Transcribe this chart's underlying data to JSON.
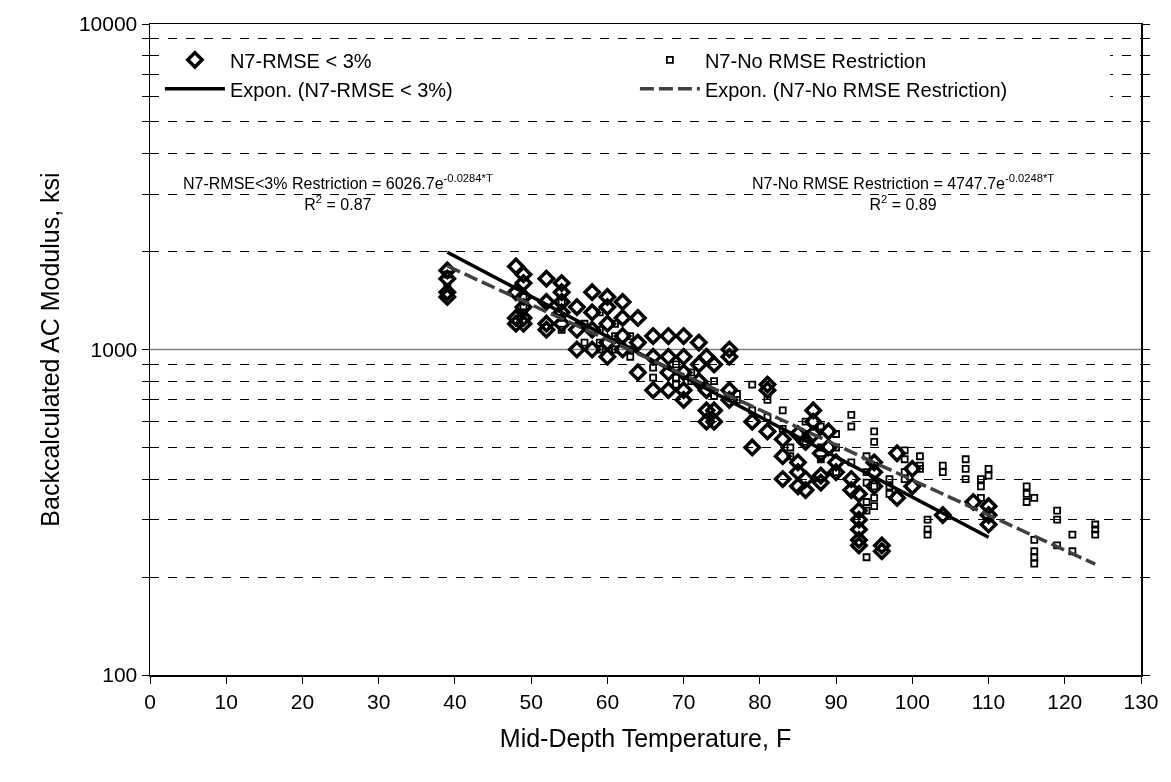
{
  "chart_data": {
    "type": "scatter",
    "xlabel": "Mid-Depth Temperature, F",
    "ylabel": "Backcalculated AC Modulus, ksi",
    "log": "y",
    "grid": "y",
    "legend": "top",
    "xlim": [
      0,
      130
    ],
    "xticks": [
      0,
      10,
      20,
      30,
      40,
      50,
      60,
      70,
      80,
      90,
      100,
      110,
      120,
      130
    ],
    "ylim": [
      100,
      10000
    ],
    "yticks": [
      100,
      {
        "value": 200,
        "label": null
      },
      {
        "value": 300,
        "label": null
      },
      {
        "value": 400,
        "label": null
      },
      {
        "value": 500,
        "label": null
      },
      {
        "value": 600,
        "label": null
      },
      {
        "value": 700,
        "label": null
      },
      {
        "value": 800,
        "label": null
      },
      {
        "value": 900,
        "label": null
      },
      1000,
      {
        "value": 2000,
        "label": null
      },
      {
        "value": 3000,
        "label": null
      },
      {
        "value": 4000,
        "label": null
      },
      {
        "value": 5000,
        "label": null
      },
      {
        "value": 6000,
        "label": null
      },
      {
        "value": 7000,
        "label": null
      },
      {
        "value": 8000,
        "label": null
      },
      {
        "value": 9000,
        "label": null
      },
      10000
    ],
    "ref_lines": [
      {
        "axis": "y",
        "value": 1000,
        "color": "#808080"
      }
    ],
    "annotations": [
      "N7-RMSE<3% Restriction = 6026.7e$^{-0.0284*T}$\nR$^{2}$ = 0.87",
      "N7-No RMSE Restriction = 4747.7e$^{-0.0248*T}$\nR$^{2}$ = 0.89"
    ],
    "series": [
      {
        "name": "N7-RMSE < 3%",
        "marker": "diamond",
        "color": "#000000",
        "x": [
          39,
          39,
          39,
          39,
          48,
          48,
          48,
          48,
          49,
          49,
          49,
          49,
          49,
          49,
          52,
          52,
          52,
          52,
          54,
          54,
          54,
          54,
          54,
          56,
          56,
          56,
          58,
          58,
          58,
          58,
          60,
          60,
          60,
          60,
          60,
          62,
          62,
          62,
          62,
          64,
          64,
          64,
          66,
          66,
          66,
          68,
          68,
          68,
          68,
          70,
          70,
          70,
          70,
          70,
          72,
          72,
          72,
          73,
          73,
          73,
          73,
          74,
          74,
          74,
          76,
          76,
          76,
          76,
          79,
          79,
          81,
          81,
          81,
          83,
          83,
          83,
          85,
          85,
          85,
          85,
          86,
          86,
          86,
          87,
          87,
          87,
          88,
          88,
          88,
          89,
          89,
          90,
          90,
          92,
          92,
          93,
          93,
          93,
          93,
          93,
          93,
          95,
          95,
          95,
          96,
          96,
          98,
          98,
          100,
          100,
          104,
          108,
          110,
          110,
          110
        ],
        "values": [
          1750,
          1650,
          1500,
          1450,
          1800,
          1500,
          1250,
          1200,
          1700,
          1600,
          1450,
          1350,
          1250,
          1200,
          1650,
          1400,
          1200,
          1150,
          1600,
          1500,
          1400,
          1300,
          1200,
          1350,
          1150,
          1000,
          1500,
          1300,
          1150,
          1000,
          1450,
          1350,
          1200,
          1050,
          950,
          1400,
          1250,
          1100,
          1000,
          1250,
          1050,
          850,
          1100,
          950,
          750,
          1100,
          950,
          850,
          750,
          1100,
          950,
          850,
          750,
          700,
          1050,
          900,
          800,
          950,
          750,
          650,
          600,
          900,
          650,
          600,
          1000,
          950,
          750,
          700,
          600,
          500,
          780,
          750,
          560,
          530,
          470,
          400,
          550,
          450,
          420,
          380,
          520,
          400,
          370,
          650,
          600,
          550,
          480,
          410,
          390,
          560,
          500,
          450,
          420,
          400,
          370,
          360,
          320,
          300,
          280,
          260,
          250,
          450,
          420,
          380,
          250,
          240,
          480,
          350,
          430,
          380,
          310,
          340,
          330,
          310,
          290
        ]
      },
      {
        "name": "N7-No RMSE Restriction",
        "marker": "square",
        "color": "#000000",
        "x": [
          39,
          39,
          49,
          49,
          49,
          54,
          54,
          54,
          57,
          57,
          59,
          59,
          59,
          59,
          61,
          61,
          61,
          63,
          63,
          63,
          66,
          66,
          69,
          69,
          69,
          71,
          71,
          74,
          74,
          77,
          77,
          79,
          79,
          81,
          81,
          83,
          83,
          84,
          84,
          86,
          86,
          86,
          88,
          88,
          88,
          90,
          90,
          90,
          92,
          92,
          92,
          94,
          94,
          94,
          94,
          94,
          94,
          95,
          95,
          95,
          95,
          95,
          95,
          97,
          97,
          97,
          99,
          99,
          99,
          99,
          101,
          101,
          101,
          102,
          102,
          102,
          104,
          104,
          107,
          107,
          107,
          109,
          109,
          109,
          110,
          110,
          115,
          115,
          115,
          116,
          116,
          116,
          116,
          116,
          119,
          119,
          119,
          121,
          121,
          124,
          124,
          124
        ],
        "values": [
          1700,
          1550,
          1450,
          1350,
          1300,
          1400,
          1250,
          1150,
          1200,
          1050,
          1300,
          1150,
          1050,
          1000,
          1200,
          1100,
          1000,
          1100,
          1000,
          950,
          880,
          820,
          900,
          820,
          780,
          850,
          800,
          800,
          720,
          730,
          700,
          780,
          650,
          700,
          620,
          650,
          570,
          500,
          470,
          600,
          550,
          520,
          580,
          500,
          460,
          550,
          500,
          420,
          630,
          580,
          450,
          470,
          420,
          390,
          340,
          320,
          230,
          560,
          520,
          440,
          380,
          350,
          330,
          400,
          380,
          360,
          490,
          460,
          420,
          400,
          470,
          440,
          430,
          300,
          280,
          270,
          440,
          420,
          460,
          430,
          400,
          400,
          380,
          350,
          430,
          410,
          380,
          360,
          340,
          350,
          260,
          240,
          230,
          220,
          320,
          300,
          250,
          270,
          240,
          290,
          280,
          270
        ]
      },
      {
        "name": "Expon. (N7-RMSE < 3%)",
        "type": "line",
        "line_style": "solid",
        "color": "#000000",
        "x": [
          39,
          110
        ],
        "values": [
          1990,
          265
        ]
      },
      {
        "name": "Expon. (N7-No RMSE Restriction)",
        "type": "line",
        "line_style": "dashed",
        "color": "#404040",
        "x": [
          39,
          124
        ],
        "values": [
          1805,
          219
        ]
      }
    ]
  }
}
